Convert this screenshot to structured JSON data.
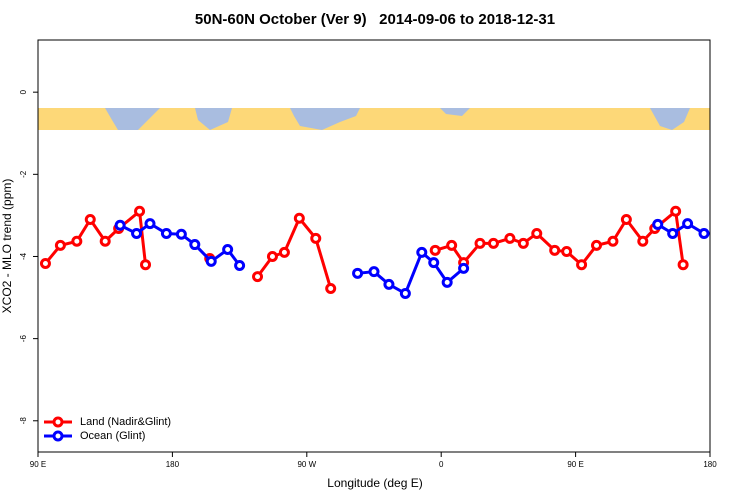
{
  "chart_data": {
    "type": "line",
    "title": "50N-60N October (Ver 9)   2014-09-06 to 2018-12-31",
    "x_label": "Longitude (deg E)",
    "y_label": "XCO2 - MLO trend (ppm)",
    "xlim": [
      90,
      540
    ],
    "xticks": [
      {
        "value": 90,
        "label": "90 E"
      },
      {
        "value": 180,
        "label": "180"
      },
      {
        "value": 270,
        "label": "90 W"
      },
      {
        "value": 360,
        "label": "0"
      },
      {
        "value": 450,
        "label": "90 E"
      },
      {
        "value": 540,
        "label": "180"
      }
    ],
    "ylim": [
      -8.76,
      1.27
    ],
    "yticks": [
      0,
      -2,
      -4,
      -6,
      -8
    ],
    "legend": "bottom-left",
    "series": [
      {
        "name": "Land (Nadir&Glint)",
        "color": "#ff0000",
        "x": [
          95,
          105,
          116,
          125,
          135,
          144,
          158,
          162,
          null,
          205,
          null,
          237,
          247,
          255,
          265,
          276,
          286,
          null,
          356,
          367,
          375,
          386,
          395,
          406,
          415,
          424,
          436,
          444,
          454,
          464,
          475,
          484,
          495,
          503,
          517,
          522
        ],
        "values": [
          -4.17,
          -3.73,
          -3.63,
          -3.1,
          -3.63,
          -3.32,
          -2.9,
          -4.2,
          null,
          -4.05,
          null,
          -4.49,
          -4.0,
          -3.9,
          -3.07,
          -3.56,
          -4.78,
          null,
          -3.85,
          -3.73,
          -4.15,
          -3.68,
          -3.68,
          -3.56,
          -3.68,
          -3.44,
          -3.85,
          -3.88,
          -4.2,
          -3.73,
          -3.63,
          -3.1,
          -3.63,
          -3.32,
          -2.9,
          -4.2
        ]
      },
      {
        "name": "Ocean (Glint)",
        "color": "#0000ff",
        "x": [
          145,
          156,
          165,
          176,
          186,
          195,
          206,
          217,
          225,
          null,
          304,
          315,
          325,
          336,
          347,
          355,
          364,
          375,
          null,
          505,
          515,
          525,
          536
        ],
        "values": [
          -3.24,
          -3.44,
          -3.2,
          -3.44,
          -3.46,
          -3.71,
          -4.12,
          -3.83,
          -4.22,
          null,
          -4.41,
          -4.37,
          -4.68,
          -4.9,
          -3.9,
          -4.15,
          -4.63,
          -4.29,
          null,
          -3.22,
          -3.44,
          -3.2,
          -3.44
        ]
      }
    ]
  }
}
